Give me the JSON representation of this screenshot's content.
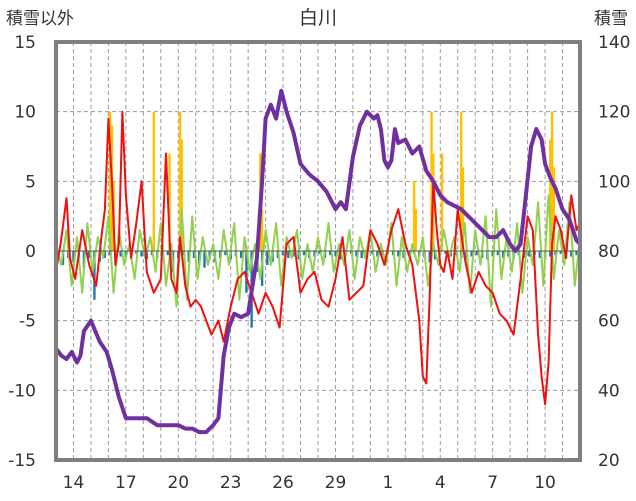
{
  "chart_data": {
    "type": "line",
    "title": "白川",
    "left_axis_label": "積雪以外",
    "right_axis_label": "積雪",
    "ylim_left": [
      -15,
      15
    ],
    "yticks_left": [
      15,
      10,
      5,
      0,
      -5,
      -10,
      -15
    ],
    "ylim_right": [
      20,
      140
    ],
    "yticks_right": [
      140,
      120,
      100,
      80,
      60,
      40,
      20
    ],
    "x_range_days": [
      0,
      30
    ],
    "x_tick_labels": [
      "14",
      "17",
      "20",
      "23",
      "26",
      "29",
      "1",
      "4",
      "7",
      "10"
    ],
    "x_tick_positions_days": [
      1,
      4,
      7,
      10,
      13,
      16,
      19,
      22,
      25,
      28
    ],
    "grid": true,
    "colors": {
      "temperature": "#ee1111",
      "snowfall": "#ffc000",
      "precipitation": "#1f77b4",
      "temp_change": "#92d050",
      "snow_depth": "#7030a0"
    },
    "series": [
      {
        "key": "temperature",
        "axis": "left",
        "x": [
          0,
          0.3,
          0.6,
          0.8,
          1.1,
          1.5,
          1.9,
          2.3,
          2.6,
          2.8,
          3.0,
          3.2,
          3.4,
          3.6,
          3.8,
          4.0,
          4.3,
          4.6,
          4.9,
          5.2,
          5.6,
          6.0,
          6.3,
          6.6,
          6.9,
          7.1,
          7.4,
          7.7,
          8.0,
          8.3,
          8.6,
          8.9,
          9.3,
          9.6,
          10.0,
          10.4,
          10.8,
          11.2,
          11.6,
          12.0,
          12.4,
          12.8,
          13.2,
          13.6,
          14.0,
          14.4,
          14.8,
          15.2,
          15.6,
          16.0,
          16.4,
          16.8,
          17.2,
          17.6,
          18.0,
          18.4,
          18.8,
          19.2,
          19.6,
          20.0,
          20.4,
          20.8,
          21.0,
          21.2,
          21.4,
          21.6,
          21.8,
          22.0,
          22.2,
          22.4,
          22.7,
          23.0,
          23.4,
          23.8,
          24.2,
          24.6,
          25.0,
          25.4,
          25.8,
          26.2,
          26.6,
          27.0,
          27.3,
          27.6,
          27.8,
          28.0,
          28.2,
          28.4,
          28.6,
          28.9,
          29.2,
          29.5,
          29.8,
          30.0
        ],
        "y": [
          -1.5,
          0.8,
          3.8,
          -0.5,
          -2.0,
          1.5,
          -1.0,
          -2.5,
          1.0,
          3.0,
          9.5,
          5.0,
          -1.0,
          0.5,
          10.0,
          4.0,
          -0.5,
          2.0,
          5.0,
          -1.5,
          -3.0,
          -2.0,
          7.0,
          -2.0,
          -3.0,
          1.0,
          -2.5,
          -4.0,
          -3.5,
          -4.0,
          -5.0,
          -6.0,
          -5.0,
          -6.5,
          -4.0,
          -2.0,
          -1.5,
          -3.0,
          -4.5,
          -3.0,
          -4.0,
          -5.5,
          0.5,
          1.0,
          -3.0,
          -2.0,
          -1.5,
          -3.5,
          -4.0,
          -2.0,
          1.0,
          -3.5,
          -3.0,
          -2.5,
          1.5,
          0.5,
          -1.0,
          1.5,
          3.0,
          0.5,
          -1.0,
          -5.0,
          -9.0,
          -9.5,
          -3.0,
          5.0,
          1.5,
          -1.0,
          -1.5,
          0.0,
          -2.0,
          3.0,
          -0.5,
          -3.0,
          -1.5,
          -2.5,
          -3.0,
          -4.5,
          -5.0,
          -6.0,
          -2.0,
          2.5,
          1.5,
          -6.0,
          -9.0,
          -11.0,
          -8.0,
          0.5,
          2.5,
          1.5,
          -0.5,
          4.0,
          1.5,
          2.0
        ]
      },
      {
        "key": "temp_change",
        "axis": "left",
        "x": [
          0,
          0.3,
          0.6,
          0.9,
          1.2,
          1.5,
          1.8,
          2.1,
          2.4,
          2.7,
          3.0,
          3.3,
          3.6,
          3.9,
          4.2,
          4.5,
          4.8,
          5.1,
          5.4,
          5.7,
          6.0,
          6.3,
          6.6,
          6.9,
          7.2,
          7.5,
          7.8,
          8.1,
          8.4,
          8.7,
          9.0,
          9.3,
          9.6,
          9.9,
          10.2,
          10.5,
          10.8,
          11.1,
          11.4,
          11.7,
          12.0,
          12.3,
          12.6,
          12.9,
          13.2,
          13.5,
          13.8,
          14.1,
          14.4,
          14.7,
          15.0,
          15.3,
          15.6,
          15.9,
          16.2,
          16.5,
          16.8,
          17.1,
          17.4,
          17.7,
          18.0,
          18.3,
          18.6,
          18.9,
          19.2,
          19.5,
          19.8,
          20.1,
          20.4,
          20.7,
          21.0,
          21.3,
          21.6,
          21.9,
          22.2,
          22.5,
          22.8,
          23.1,
          23.4,
          23.7,
          24.0,
          24.3,
          24.6,
          24.9,
          25.2,
          25.5,
          25.8,
          26.1,
          26.4,
          26.7,
          27.0,
          27.3,
          27.6,
          27.9,
          28.2,
          28.5,
          28.8,
          29.1,
          29.4,
          29.7,
          30.0
        ],
        "y": [
          0.5,
          -1.0,
          1.5,
          -2.5,
          1.0,
          -3.0,
          2.0,
          -1.5,
          1.0,
          -0.5,
          2.5,
          -3.0,
          1.5,
          -1.0,
          0.5,
          -2.0,
          1.5,
          -0.5,
          1.0,
          -1.5,
          2.0,
          -2.5,
          0.5,
          -4.0,
          3.0,
          -3.5,
          2.5,
          -2.0,
          1.0,
          -1.0,
          0.5,
          -2.0,
          1.5,
          -1.0,
          2.0,
          -3.5,
          1.0,
          -1.5,
          0.5,
          -2.0,
          1.5,
          -1.0,
          2.0,
          -2.5,
          1.0,
          -0.5,
          1.5,
          -2.0,
          0.5,
          -1.5,
          1.0,
          -1.0,
          2.0,
          -1.5,
          0.5,
          -1.0,
          1.5,
          -2.0,
          1.0,
          -0.5,
          1.5,
          -1.5,
          0.5,
          -1.0,
          2.0,
          -2.5,
          1.0,
          -1.5,
          0.5,
          -1.0,
          1.0,
          -2.5,
          0.5,
          -1.0,
          1.5,
          -0.5,
          1.0,
          -1.5,
          2.0,
          -3.0,
          1.5,
          -1.0,
          2.5,
          -4.0,
          3.0,
          -2.0,
          1.0,
          -1.5,
          2.0,
          -3.0,
          1.0,
          -1.0,
          3.5,
          -2.5,
          4.0,
          -2.0,
          1.5,
          -1.0,
          3.5,
          -2.5,
          1.0
        ]
      },
      {
        "key": "snow_depth",
        "axis": "right",
        "x": [
          0,
          0.3,
          0.6,
          0.9,
          1.2,
          1.4,
          1.6,
          2.0,
          2.5,
          2.9,
          3.2,
          3.6,
          4.0,
          4.6,
          5.2,
          5.8,
          6.4,
          7.0,
          7.4,
          7.8,
          8.2,
          8.6,
          9.0,
          9.3,
          9.6,
          9.9,
          10.2,
          10.6,
          11.0,
          11.5,
          11.8,
          12.0,
          12.3,
          12.6,
          12.9,
          13.2,
          13.6,
          14.0,
          14.5,
          15.0,
          15.5,
          16.0,
          16.3,
          16.6,
          17.0,
          17.4,
          17.8,
          18.2,
          18.4,
          18.6,
          18.8,
          19.0,
          19.2,
          19.4,
          19.6,
          20.0,
          20.4,
          20.8,
          21.2,
          21.6,
          22.0,
          22.4,
          22.8,
          23.2,
          23.6,
          24.0,
          24.4,
          24.8,
          25.2,
          25.6,
          26.0,
          26.3,
          26.6,
          26.9,
          27.2,
          27.5,
          27.8,
          28.0,
          28.3,
          28.6,
          29.0,
          29.4,
          29.8,
          30.0
        ],
        "y": [
          52,
          50,
          49,
          51,
          48,
          50,
          57,
          60,
          54,
          51,
          46,
          38,
          32,
          32,
          32,
          30,
          30,
          30,
          29,
          29,
          28,
          28,
          30,
          32,
          50,
          58,
          62,
          61,
          62,
          78,
          100,
          118,
          122,
          118,
          126,
          120,
          114,
          105,
          102,
          100,
          97,
          92,
          94,
          92,
          107,
          116,
          120,
          118,
          119,
          115,
          106,
          104,
          106,
          115,
          111,
          112,
          108,
          110,
          103,
          100,
          96,
          94,
          93,
          92,
          90,
          88,
          86,
          84,
          84,
          86,
          82,
          80,
          82,
          96,
          110,
          115,
          112,
          105,
          101,
          98,
          92,
          89,
          83,
          82
        ]
      }
    ],
    "bars": [
      {
        "key": "snowfall",
        "axis": "left",
        "x": [
          3.1,
          3.2,
          3.3,
          5.6,
          6.5,
          7.1,
          7.2,
          11.7,
          11.8,
          20.5,
          20.6,
          21.5,
          21.6,
          22.1,
          23.2,
          23.3,
          28.3,
          28.4,
          28.5
        ],
        "values": [
          10.0,
          9.0,
          5.0,
          10.0,
          7.0,
          10.0,
          8.0,
          7.0,
          3.0,
          5.0,
          3.0,
          10.0,
          7.0,
          7.0,
          10.0,
          6.0,
          8.0,
          10.0,
          6.0
        ]
      },
      {
        "key": "precipitation",
        "axis": "left",
        "x": [
          0.4,
          0.7,
          1.0,
          1.3,
          1.6,
          1.9,
          2.2,
          2.5,
          2.8,
          3.1,
          3.4,
          3.7,
          4.0,
          4.3,
          4.6,
          4.9,
          5.2,
          5.5,
          5.8,
          6.1,
          6.4,
          6.7,
          7.0,
          7.3,
          7.6,
          7.9,
          8.2,
          8.5,
          8.8,
          9.1,
          9.4,
          9.7,
          10.0,
          10.3,
          10.6,
          10.9,
          11.2,
          11.5,
          11.8,
          12.1,
          12.4,
          12.7,
          13.0,
          13.3,
          13.6,
          13.9,
          14.2,
          14.5,
          14.8,
          15.1,
          15.4,
          15.7,
          16.0,
          16.3,
          16.6,
          16.9,
          17.2,
          17.5,
          17.8,
          18.1,
          18.4,
          18.7,
          19.0,
          19.3,
          19.6,
          19.9,
          20.2,
          20.5,
          20.8,
          21.1,
          21.4,
          21.7,
          22.0,
          22.3,
          22.6,
          22.9,
          23.2,
          23.5,
          23.8,
          24.1,
          24.4,
          24.7,
          25.0,
          25.3,
          25.6,
          25.9,
          26.2,
          26.5,
          26.8,
          27.1,
          27.4,
          27.7,
          28.0,
          28.3,
          28.6,
          28.9,
          29.2,
          29.5,
          29.8
        ],
        "values": [
          -1.0,
          -0.5,
          -0.8,
          -0.6,
          -1.2,
          -0.5,
          -3.5,
          -0.8,
          -0.5,
          -0.3,
          -0.6,
          -0.4,
          -0.5,
          -0.3,
          -0.2,
          -0.4,
          -0.6,
          -0.3,
          -0.5,
          -0.2,
          -0.3,
          -1.5,
          -0.5,
          -0.3,
          -0.8,
          -0.5,
          -1.0,
          -1.2,
          -0.6,
          -0.8,
          -0.5,
          -0.3,
          -0.6,
          -0.4,
          -0.5,
          -3.0,
          -5.5,
          -1.5,
          -2.5,
          -1.0,
          -0.8,
          -0.5,
          -0.3,
          -0.5,
          -0.4,
          -0.6,
          -0.3,
          -0.5,
          -0.4,
          -0.2,
          -0.5,
          -0.3,
          -0.4,
          -0.6,
          -0.3,
          -0.2,
          -0.4,
          -0.5,
          -0.3,
          -0.2,
          -0.4,
          -0.3,
          -0.2,
          -0.3,
          -0.4,
          -0.5,
          -0.3,
          -0.2,
          -0.4,
          -0.5,
          -0.8,
          -0.6,
          -0.3,
          -0.2,
          -0.4,
          -0.3,
          -0.5,
          -0.6,
          -0.4,
          -0.3,
          -0.5,
          -0.6,
          -0.4,
          -0.3,
          -0.5,
          -0.4,
          -0.6,
          -0.3,
          -0.5,
          -0.4,
          -0.3,
          -0.5,
          -0.6,
          -0.4,
          -0.3,
          -0.2,
          -0.5,
          -0.4,
          -0.3
        ]
      }
    ]
  }
}
